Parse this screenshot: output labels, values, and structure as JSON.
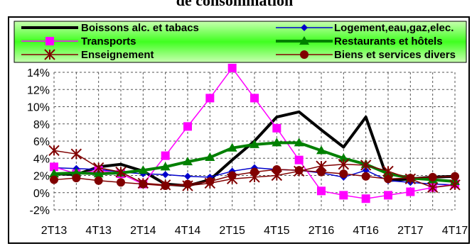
{
  "chart_data": {
    "type": "line",
    "title": "de consommation",
    "legend_position": "top",
    "grid": true,
    "ylim": [
      -2,
      14
    ],
    "yticks": [
      "-2%",
      "0%",
      "2%",
      "4%",
      "6%",
      "8%",
      "10%",
      "12%",
      "14%"
    ],
    "categories": [
      "2T13",
      "3T13",
      "4T13",
      "1T14",
      "2T14",
      "3T14",
      "4T14",
      "1T15",
      "2T15",
      "3T15",
      "4T15",
      "1T16",
      "2T16",
      "3T16",
      "4T16",
      "1T17",
      "2T17",
      "3T17",
      "4T17"
    ],
    "xtick_labels": [
      "2T13",
      "4T13",
      "2T14",
      "4T14",
      "2T15",
      "4T15",
      "2T16",
      "4T16",
      "2T17",
      "4T17"
    ],
    "series": [
      {
        "name": "Boissons alc. et tabacs",
        "color": "#000000",
        "marker": "none",
        "width": 4,
        "values": [
          2.2,
          2.1,
          3.0,
          3.3,
          2.5,
          1.0,
          0.8,
          1.5,
          3.8,
          6.0,
          8.8,
          9.4,
          7.3,
          5.3,
          8.8,
          1.4,
          1.6,
          1.8,
          1.9
        ]
      },
      {
        "name": "Logement,eau,gaz,elec.",
        "color": "#0000cc",
        "marker": "diamond",
        "width": 1.5,
        "values": [
          2.9,
          2.8,
          2.7,
          2.4,
          2.2,
          2.1,
          1.9,
          1.8,
          2.5,
          2.9,
          2.7,
          2.6,
          2.3,
          1.8,
          2.6,
          1.4,
          1.2,
          1.0,
          0.9
        ]
      },
      {
        "name": "Transports",
        "color": "#ff00ff",
        "marker": "square",
        "width": 1.5,
        "values": [
          3.0,
          2.2,
          2.6,
          2.2,
          1.0,
          4.3,
          7.7,
          11.0,
          14.5,
          11.0,
          7.5,
          3.8,
          0.2,
          -0.3,
          -0.7,
          -0.3,
          0.1,
          0.6,
          1.0
        ]
      },
      {
        "name": "Restaurants et hôtels",
        "color": "#008000",
        "marker": "triangle",
        "width": 4,
        "values": [
          2.2,
          2.3,
          2.2,
          2.3,
          2.6,
          3.0,
          3.6,
          4.1,
          5.2,
          5.6,
          5.8,
          5.8,
          4.9,
          4.0,
          3.3,
          2.2,
          1.7,
          1.5,
          1.3
        ]
      },
      {
        "name": "Enseignement",
        "color": "#800000",
        "marker": "star",
        "width": 1.5,
        "values": [
          4.9,
          4.5,
          2.9,
          2.4,
          1.1,
          0.9,
          0.8,
          1.1,
          1.6,
          1.8,
          2.0,
          2.5,
          3.1,
          3.3,
          3.2,
          2.5,
          1.6,
          0.6,
          0.9
        ]
      },
      {
        "name": "Biens et services divers",
        "color": "#800000",
        "marker": "circle",
        "width": 1.5,
        "values": [
          1.5,
          1.7,
          1.4,
          1.2,
          1.0,
          0.8,
          1.0,
          1.3,
          2.0,
          2.4,
          2.7,
          2.6,
          2.4,
          2.2,
          1.9,
          1.6,
          1.7,
          1.8,
          1.9
        ]
      }
    ]
  }
}
